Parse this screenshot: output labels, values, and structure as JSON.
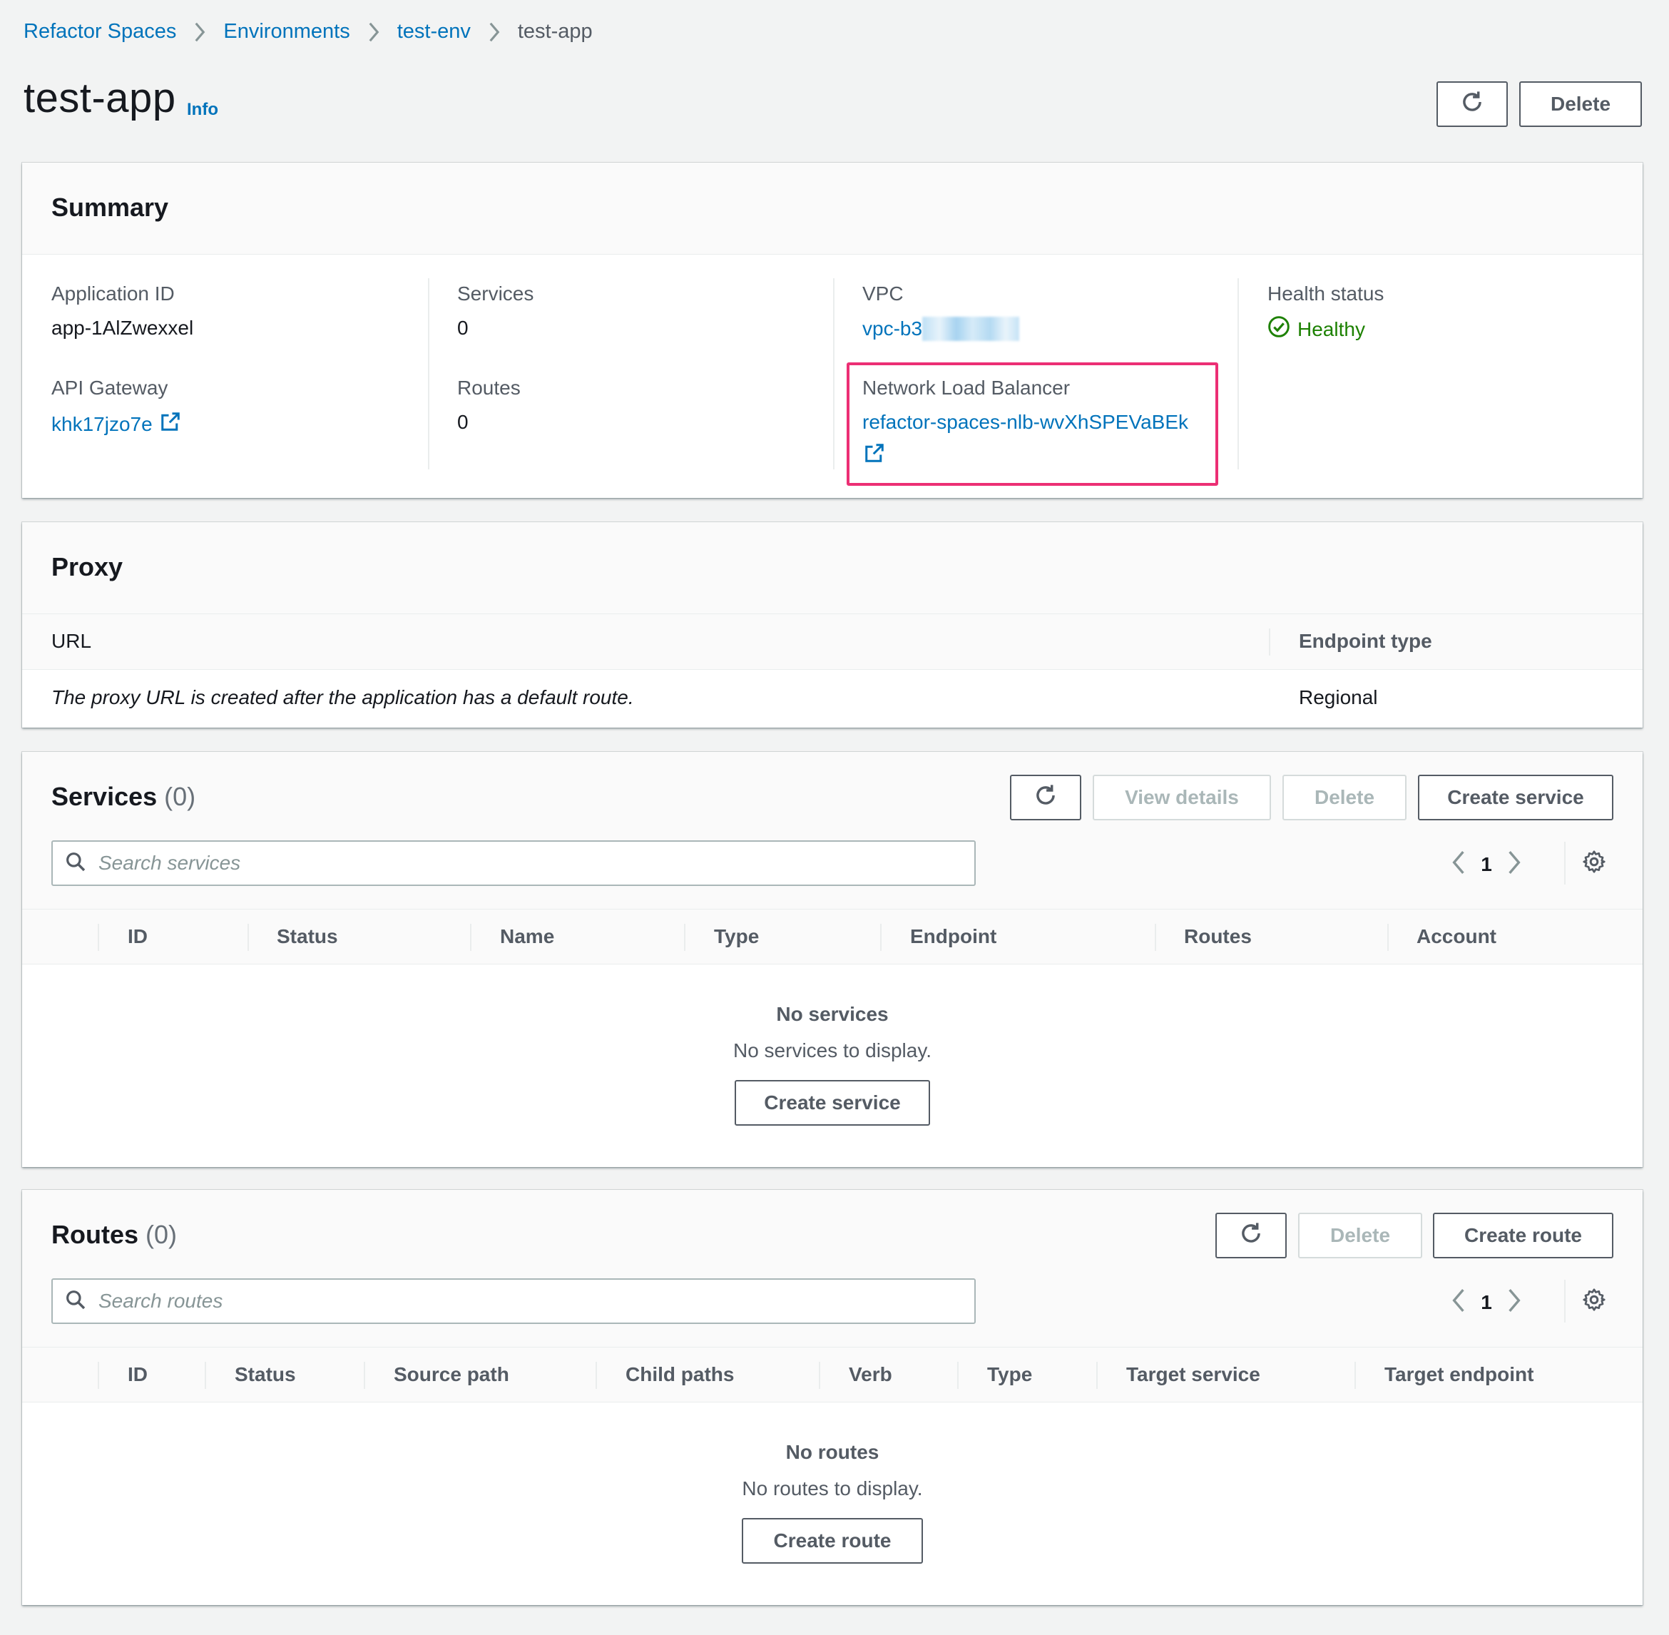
{
  "breadcrumb": {
    "items": [
      "Refactor Spaces",
      "Environments",
      "test-env"
    ],
    "current": "test-app"
  },
  "header": {
    "title": "test-app",
    "info": "Info",
    "delete_label": "Delete"
  },
  "summary": {
    "title": "Summary",
    "application_id_label": "Application ID",
    "application_id": "app-1AlZwexxel",
    "api_gateway_label": "API Gateway",
    "api_gateway": "khk17jzo7e",
    "services_label": "Services",
    "services_value": "0",
    "routes_label": "Routes",
    "routes_value": "0",
    "vpc_label": "VPC",
    "vpc_value": "vpc-b3",
    "nlb_label": "Network Load Balancer",
    "nlb_value": "refactor-spaces-nlb-wvXhSPEVaBEk",
    "health_label": "Health status",
    "health_value": "Healthy",
    "highlight_color": "#ec2f74"
  },
  "proxy": {
    "title": "Proxy",
    "col_url": "URL",
    "col_endpoint": "Endpoint type",
    "url_value": "The proxy URL is created after the application has a default route.",
    "endpoint_value": "Regional"
  },
  "services": {
    "title": "Services",
    "count": "(0)",
    "view_details": "View details",
    "delete": "Delete",
    "create": "Create service",
    "search_placeholder": "Search services",
    "page": "1",
    "columns": [
      "ID",
      "Status",
      "Name",
      "Type",
      "Endpoint",
      "Routes",
      "Account"
    ],
    "empty_title": "No services",
    "empty_desc": "No services to display.",
    "empty_button": "Create service"
  },
  "routes": {
    "title": "Routes",
    "count": "(0)",
    "delete": "Delete",
    "create": "Create route",
    "search_placeholder": "Search routes",
    "page": "1",
    "columns": [
      "ID",
      "Status",
      "Source path",
      "Child paths",
      "Verb",
      "Type",
      "Target service",
      "Target endpoint"
    ],
    "empty_title": "No routes",
    "empty_desc": "No routes to display.",
    "empty_button": "Create route"
  },
  "colors": {
    "link": "#0073bb",
    "healthy": "#1d8102",
    "background": "#f2f3f3"
  }
}
